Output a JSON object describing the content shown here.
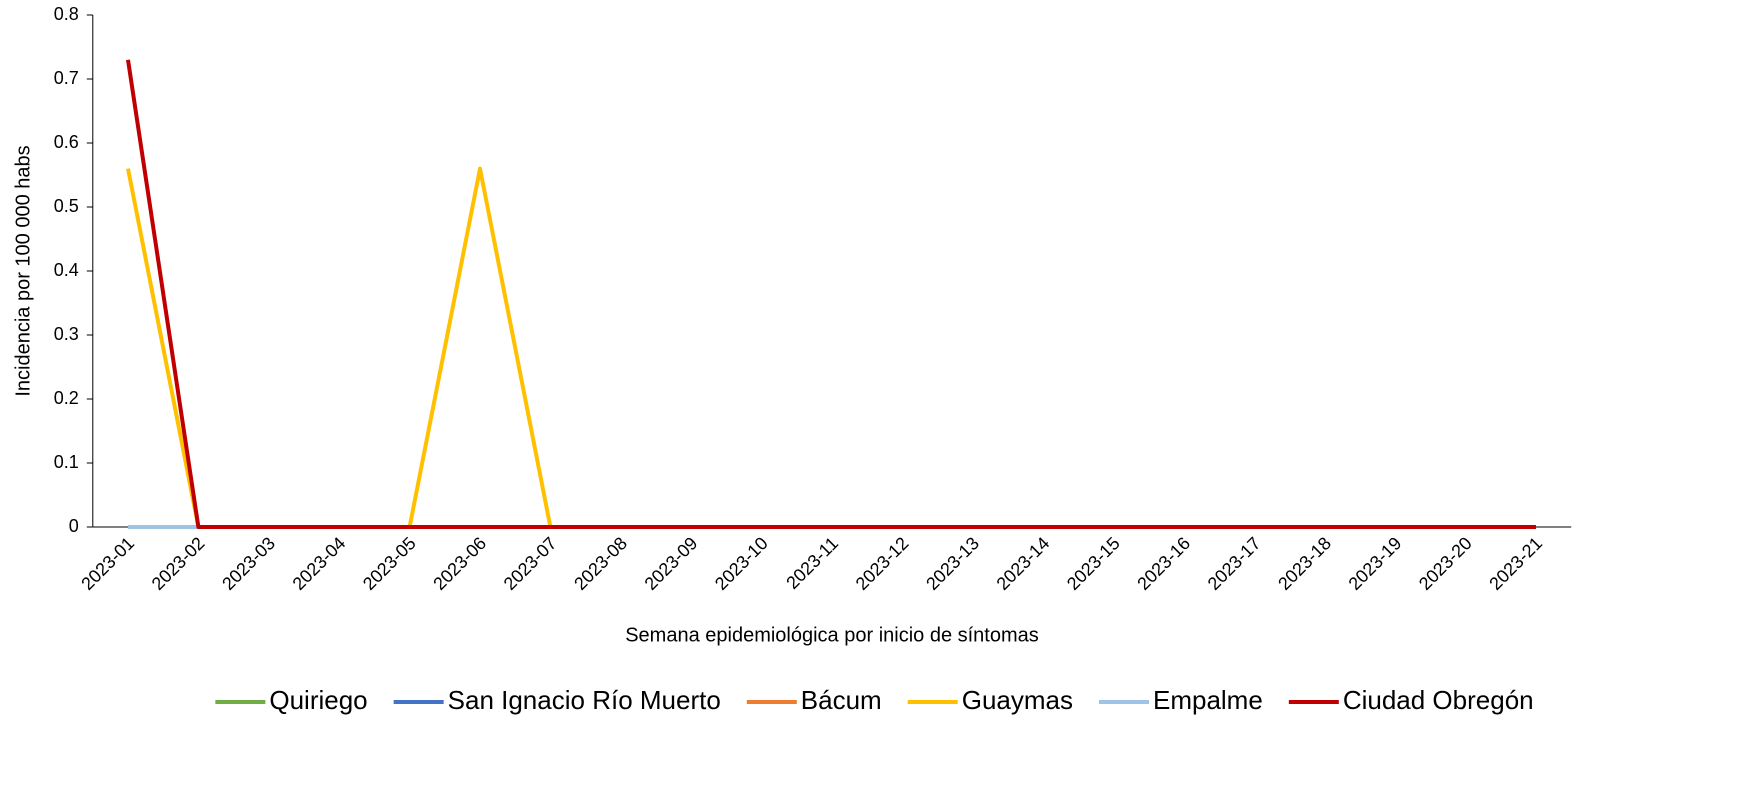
{
  "chart_data": {
    "type": "line",
    "x_label": "Semana epidemiológica por inicio de síntomas",
    "y_label": "Incidencia por 100 000 habs",
    "categories": [
      "2023-01",
      "2023-02",
      "2023-03",
      "2023-04",
      "2023-05",
      "2023-06",
      "2023-07",
      "2023-08",
      "2023-09",
      "2023-10",
      "2023-11",
      "2023-12",
      "2023-13",
      "2023-14",
      "2023-15",
      "2023-16",
      "2023-17",
      "2023-18",
      "2023-19",
      "2023-20",
      "2023-21"
    ],
    "series": [
      {
        "name": "Quiriego",
        "color": "#70ad47",
        "values": [
          0,
          0,
          0,
          0,
          0,
          0,
          0,
          0,
          0,
          0,
          0,
          0,
          0,
          0,
          0,
          0,
          0,
          0,
          0,
          0,
          0
        ]
      },
      {
        "name": "San Ignacio Río Muerto",
        "color": "#4472c4",
        "values": [
          0,
          0,
          0,
          0,
          0,
          0,
          0,
          0,
          0,
          0,
          0,
          0,
          0,
          0,
          0,
          0,
          0,
          0,
          0,
          0,
          0
        ]
      },
      {
        "name": "Bácum",
        "color": "#ed7d31",
        "values": [
          0,
          0,
          0,
          0,
          0,
          0,
          0,
          0,
          0,
          0,
          0,
          0,
          0,
          0,
          0,
          0,
          0,
          0,
          0,
          0,
          0
        ]
      },
      {
        "name": "Guaymas",
        "color": "#ffc000",
        "values": [
          0.56,
          0,
          0,
          0,
          0,
          0.56,
          0,
          0,
          0,
          0,
          0,
          0,
          0,
          0,
          0,
          0,
          0,
          0,
          0,
          0,
          0
        ]
      },
      {
        "name": "Empalme",
        "color": "#9dc3e6",
        "values": [
          0,
          0,
          0,
          0,
          0,
          0,
          0,
          0,
          0,
          0,
          0,
          0,
          0,
          0,
          0,
          0,
          0,
          0,
          0,
          0,
          0
        ]
      },
      {
        "name": "Ciudad Obregón",
        "color": "#c00000",
        "values": [
          0.73,
          0,
          0,
          0,
          0,
          0,
          0,
          0,
          0,
          0,
          0,
          0,
          0,
          0,
          0,
          0,
          0,
          0,
          0,
          0,
          0
        ]
      }
    ],
    "ylim": [
      0,
      0.8
    ],
    "yticks": [
      0,
      0.1,
      0.2,
      0.3,
      0.4,
      0.5,
      0.6,
      0.7,
      0.8
    ],
    "grid": false,
    "legend": "bottom"
  }
}
